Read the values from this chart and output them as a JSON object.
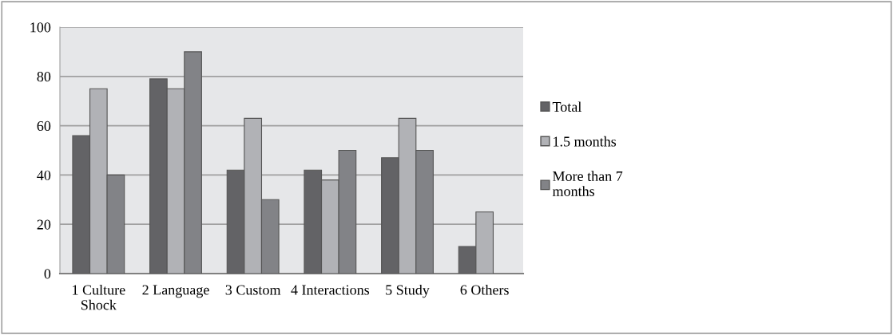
{
  "chart_data": {
    "type": "bar",
    "categories": [
      "1 Culture\nShock",
      "2 Language",
      "3 Custom",
      "4 Interactions",
      "5 Study",
      "6 Others"
    ],
    "series": [
      {
        "name": "Total",
        "color": "#636366",
        "values": [
          56,
          79,
          42,
          42,
          47,
          11
        ]
      },
      {
        "name": "1.5 months",
        "color": "#b1b2b6",
        "values": [
          75,
          75,
          63,
          38,
          63,
          25
        ]
      },
      {
        "name": "More than 7\nmonths",
        "color": "#828387",
        "values": [
          40,
          90,
          30,
          50,
          50,
          null
        ]
      }
    ],
    "ylim": [
      0,
      100
    ],
    "yticks": [
      0,
      20,
      40,
      60,
      80,
      100
    ],
    "grid": "y",
    "legend": "right"
  }
}
